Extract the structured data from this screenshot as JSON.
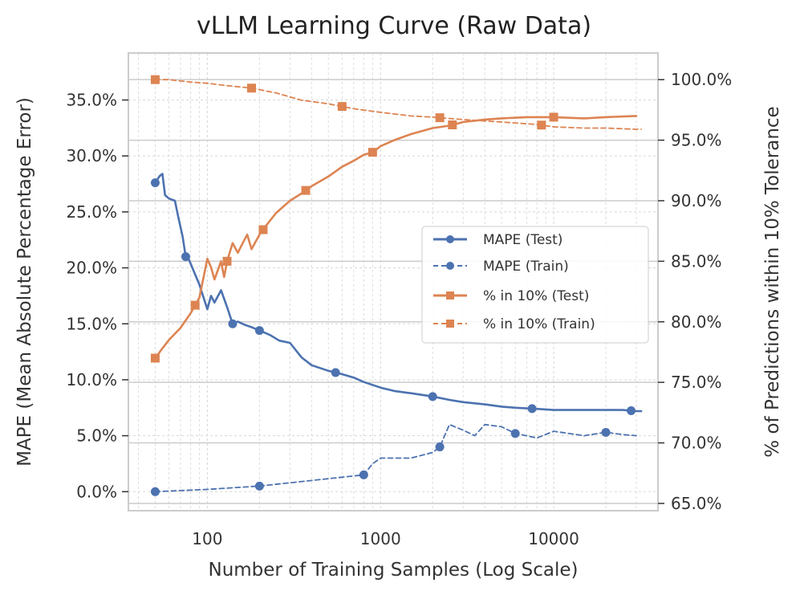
{
  "chart_data": {
    "type": "line",
    "title": "vLLM Learning Curve (Raw Data)",
    "xlabel": "Number of Training Samples (Log Scale)",
    "ylabel": "MAPE (Mean Absolute Percentage Error)",
    "y2label": "% of Predictions within 10% Tolerance",
    "x_scale": "log",
    "xlim": [
      35,
      40000
    ],
    "ylim": [
      -1.7,
      39.2
    ],
    "y2lim": [
      64.4,
      102.2
    ],
    "x_ticks": [
      100,
      1000,
      10000
    ],
    "x_tick_labels": [
      "100",
      "1000",
      "10000"
    ],
    "y_ticks": [
      0,
      5,
      10,
      15,
      20,
      25,
      30,
      35
    ],
    "y_tick_labels": [
      "0.0%",
      "5.0%",
      "10.0%",
      "15.0%",
      "20.0%",
      "25.0%",
      "30.0%",
      "35.0%"
    ],
    "y2_ticks": [
      65,
      70,
      75,
      80,
      85,
      90,
      95,
      100
    ],
    "y2_tick_labels": [
      "65.0%",
      "70.0%",
      "75.0%",
      "80.0%",
      "85.0%",
      "90.0%",
      "95.0%",
      "100.0%"
    ],
    "grid": true,
    "legend_position": "center-right",
    "series": [
      {
        "name": "MAPE (Test)",
        "axis": "left",
        "color": "#4c72b0",
        "linestyle": "solid",
        "marker": "circle",
        "x": [
          50,
          53,
          55,
          57,
          60,
          65,
          68,
          72,
          75,
          78,
          82,
          90,
          100,
          105,
          110,
          120,
          130,
          140,
          150,
          165,
          180,
          200,
          230,
          260,
          300,
          350,
          400,
          500,
          600,
          700,
          800,
          1000,
          1200,
          1500,
          2000,
          2500,
          3000,
          4000,
          5000,
          6000,
          8000,
          10000,
          15000,
          20000,
          25000,
          30000,
          32000
        ],
        "y": [
          27.6,
          28.2,
          28.4,
          26.5,
          26.2,
          26.0,
          24.5,
          22.8,
          21.0,
          20.8,
          20.0,
          18.5,
          16.3,
          17.5,
          16.9,
          18.0,
          16.5,
          15.0,
          15.2,
          14.9,
          14.7,
          14.4,
          14.0,
          13.5,
          13.3,
          12.0,
          11.3,
          10.8,
          10.5,
          10.2,
          9.8,
          9.3,
          9.0,
          8.8,
          8.5,
          8.2,
          8.0,
          7.8,
          7.6,
          7.5,
          7.4,
          7.3,
          7.3,
          7.3,
          7.3,
          7.2,
          7.2
        ],
        "marker_x": [
          50,
          75,
          140,
          200,
          550,
          2000,
          7500,
          28000
        ]
      },
      {
        "name": "MAPE (Train)",
        "axis": "left",
        "color": "#4c72b0",
        "linestyle": "dashed",
        "marker": "circle",
        "x": [
          50,
          100,
          200,
          400,
          800,
          900,
          1000,
          1500,
          2000,
          2200,
          2500,
          3000,
          3500,
          4000,
          5000,
          6000,
          8000,
          10000,
          15000,
          20000,
          25000,
          30000
        ],
        "y": [
          0.0,
          0.2,
          0.5,
          1.0,
          1.5,
          2.5,
          3.0,
          3.0,
          3.5,
          4.0,
          6.0,
          5.5,
          5.0,
          6.0,
          5.8,
          5.2,
          4.8,
          5.4,
          5.0,
          5.3,
          5.1,
          5.0
        ],
        "marker_x": [
          50,
          200,
          800,
          2200,
          6000,
          20000
        ]
      },
      {
        "name": "% in 10% (Test)",
        "axis": "right",
        "color": "#dd8452",
        "linestyle": "solid",
        "marker": "square",
        "x": [
          50,
          55,
          60,
          70,
          80,
          90,
          100,
          105,
          110,
          120,
          125,
          130,
          140,
          150,
          160,
          170,
          180,
          200,
          220,
          250,
          300,
          350,
          400,
          500,
          600,
          700,
          800,
          900,
          1000,
          1200,
          1500,
          2000,
          2500,
          3000,
          4000,
          5000,
          7000,
          10000,
          15000,
          20000,
          30000
        ],
        "y": [
          77.0,
          77.8,
          78.5,
          79.5,
          80.7,
          82.0,
          85.2,
          84.5,
          83.5,
          85.0,
          83.7,
          85.0,
          86.5,
          85.7,
          86.5,
          87.2,
          86.0,
          87.2,
          88.0,
          89.0,
          90.0,
          90.6,
          91.2,
          92.0,
          92.8,
          93.3,
          93.8,
          94.0,
          94.5,
          95.0,
          95.5,
          96.0,
          96.2,
          96.5,
          96.7,
          96.8,
          96.9,
          96.9,
          96.8,
          96.9,
          97.0
        ],
        "marker_x": [
          50,
          85,
          130,
          210,
          370,
          900,
          2600,
          10000
        ]
      },
      {
        "name": "% in 10% (Train)",
        "axis": "right",
        "color": "#dd8452",
        "linestyle": "dashed",
        "marker": "square",
        "x": [
          50,
          60,
          80,
          100,
          130,
          180,
          250,
          350,
          500,
          700,
          1000,
          1500,
          2000,
          3000,
          5000,
          8000,
          10000,
          15000,
          20000,
          30000,
          32000
        ],
        "y": [
          100.0,
          100.0,
          99.8,
          99.7,
          99.5,
          99.3,
          98.9,
          98.3,
          98.0,
          97.6,
          97.3,
          97.0,
          96.9,
          96.7,
          96.5,
          96.3,
          96.1,
          96.0,
          96.0,
          95.9,
          95.9
        ],
        "marker_x": [
          50,
          180,
          600,
          2200,
          8500
        ]
      }
    ]
  }
}
